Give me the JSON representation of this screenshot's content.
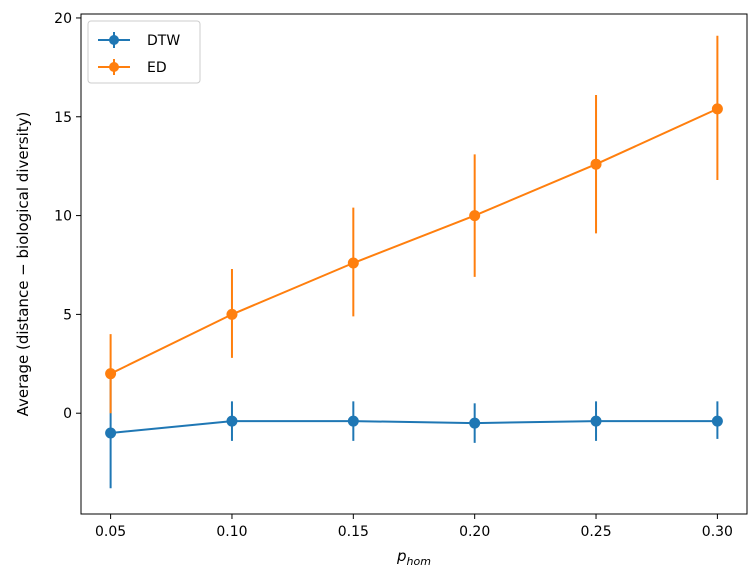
{
  "chart_data": {
    "type": "line",
    "x": [
      0.05,
      0.1,
      0.15,
      0.2,
      0.25,
      0.3
    ],
    "x_tick_labels": [
      "0.05",
      "0.10",
      "0.15",
      "0.20",
      "0.25",
      "0.30"
    ],
    "y_ticks": [
      0,
      5,
      10,
      15,
      20
    ],
    "y_tick_labels": [
      "0",
      "5",
      "10",
      "15",
      "20"
    ],
    "xlim": [
      0.0378,
      0.3122
    ],
    "ylim": [
      -5.1,
      20.2
    ],
    "xlabel_main": "p",
    "xlabel_sub": "hom",
    "ylabel": "Average (distance − biological diversity)",
    "title": "",
    "grid": false,
    "legend_placement": "top-left",
    "series": [
      {
        "name": "DTW",
        "color": "#1f77b4",
        "values": [
          -1.0,
          -0.4,
          -0.4,
          -0.5,
          -0.4,
          -0.4
        ],
        "yerr_low": [
          2.8,
          1.0,
          1.0,
          1.0,
          1.0,
          0.9
        ],
        "yerr_high": [
          3.0,
          1.0,
          1.0,
          1.0,
          1.0,
          1.0
        ]
      },
      {
        "name": "ED",
        "color": "#ff7f0e",
        "values": [
          2.0,
          5.0,
          7.6,
          10.0,
          12.6,
          15.4
        ],
        "yerr_low": [
          2.0,
          2.2,
          2.7,
          3.1,
          3.5,
          3.6
        ],
        "yerr_high": [
          2.0,
          2.3,
          2.8,
          3.1,
          3.5,
          3.7
        ]
      }
    ]
  }
}
